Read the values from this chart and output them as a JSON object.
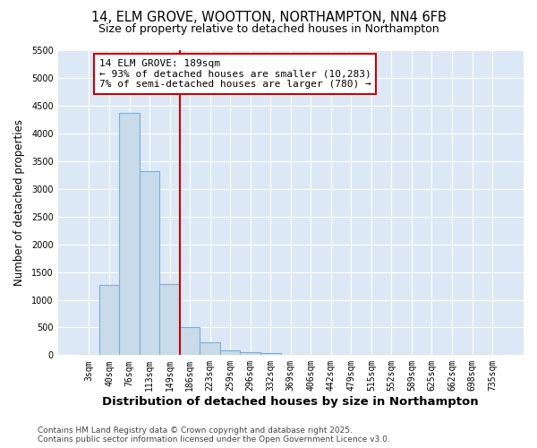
{
  "title_line1": "14, ELM GROVE, WOOTTON, NORTHAMPTON, NN4 6FB",
  "title_line2": "Size of property relative to detached houses in Northampton",
  "xlabel": "Distribution of detached houses by size in Northampton",
  "ylabel": "Number of detached properties",
  "categories": [
    "3sqm",
    "40sqm",
    "76sqm",
    "113sqm",
    "149sqm",
    "186sqm",
    "223sqm",
    "259sqm",
    "296sqm",
    "332sqm",
    "369sqm",
    "406sqm",
    "442sqm",
    "479sqm",
    "515sqm",
    "552sqm",
    "589sqm",
    "625sqm",
    "662sqm",
    "698sqm",
    "735sqm"
  ],
  "values": [
    0,
    1270,
    4380,
    3320,
    1280,
    500,
    230,
    80,
    50,
    30,
    0,
    0,
    0,
    0,
    0,
    0,
    0,
    0,
    0,
    0,
    0
  ],
  "bar_color": "#c9daea",
  "bar_edge_color": "#7bafd4",
  "red_line_index": 5,
  "annotation_title": "14 ELM GROVE: 189sqm",
  "annotation_line2": "← 93% of detached houses are smaller (10,283)",
  "annotation_line3": "7% of semi-detached houses are larger (780) →",
  "annotation_box_color": "#ffffff",
  "annotation_edge_color": "#cc0000",
  "red_line_color": "#cc0000",
  "ylim": [
    0,
    5500
  ],
  "yticks": [
    0,
    500,
    1000,
    1500,
    2000,
    2500,
    3000,
    3500,
    4000,
    4500,
    5000,
    5500
  ],
  "fig_bg_color": "#ffffff",
  "plot_bg_color": "#dce8f5",
  "grid_color": "#ffffff",
  "footnote_line1": "Contains HM Land Registry data © Crown copyright and database right 2025.",
  "footnote_line2": "Contains public sector information licensed under the Open Government Licence v3.0.",
  "title_fontsize": 10.5,
  "subtitle_fontsize": 9,
  "xlabel_fontsize": 9.5,
  "ylabel_fontsize": 8.5,
  "tick_fontsize": 7,
  "annotation_fontsize": 8,
  "footnote_fontsize": 6.5
}
